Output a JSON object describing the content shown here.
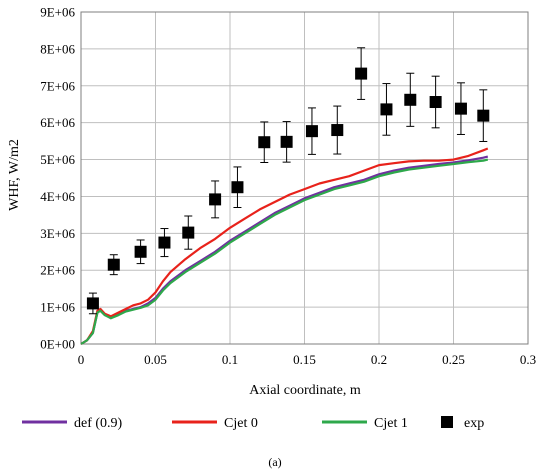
{
  "chart_data": {
    "type": "line",
    "title": "",
    "caption": "(a)",
    "xlabel": "Axial coordinate, m",
    "ylabel": "WHF, W/m2",
    "xlim": [
      0,
      0.3
    ],
    "ylim": [
      0,
      9000000
    ],
    "x_ticks": [
      0,
      0.05,
      0.1,
      0.15,
      0.2,
      0.25,
      0.3
    ],
    "x_tick_labels": [
      "0",
      "0.05",
      "0.1",
      "0.15",
      "0.2",
      "0.25",
      "0.3"
    ],
    "y_ticks": [
      0,
      1000000,
      2000000,
      3000000,
      4000000,
      5000000,
      6000000,
      7000000,
      8000000,
      9000000
    ],
    "y_tick_labels": [
      "0E+00",
      "1E+06",
      "2E+06",
      "3E+06",
      "4E+06",
      "5E+06",
      "6E+06",
      "7E+06",
      "8E+06",
      "9E+06"
    ],
    "grid": true,
    "legend_position": "bottom",
    "series": [
      {
        "name": "def (0.9)",
        "kind": "line",
        "color": "#7030a0",
        "x": [
          0.0,
          0.004,
          0.008,
          0.011,
          0.013,
          0.016,
          0.02,
          0.025,
          0.03,
          0.035,
          0.04,
          0.045,
          0.05,
          0.055,
          0.06,
          0.07,
          0.08,
          0.09,
          0.1,
          0.11,
          0.12,
          0.13,
          0.14,
          0.15,
          0.16,
          0.17,
          0.18,
          0.19,
          0.2,
          0.21,
          0.22,
          0.23,
          0.24,
          0.25,
          0.26,
          0.27,
          0.273
        ],
        "y": [
          0,
          100000,
          300000,
          850000,
          950000,
          800000,
          700000,
          800000,
          900000,
          950000,
          1000000,
          1100000,
          1250000,
          1500000,
          1700000,
          2000000,
          2250000,
          2500000,
          2800000,
          3050000,
          3300000,
          3550000,
          3750000,
          3950000,
          4100000,
          4250000,
          4350000,
          4450000,
          4600000,
          4700000,
          4780000,
          4830000,
          4880000,
          4920000,
          4980000,
          5050000,
          5080000
        ]
      },
      {
        "name": "Cjet 0",
        "kind": "line",
        "color": "#e8221b",
        "x": [
          0.0,
          0.004,
          0.008,
          0.011,
          0.013,
          0.016,
          0.02,
          0.025,
          0.03,
          0.035,
          0.04,
          0.045,
          0.05,
          0.055,
          0.06,
          0.07,
          0.08,
          0.09,
          0.1,
          0.11,
          0.12,
          0.13,
          0.14,
          0.15,
          0.16,
          0.17,
          0.18,
          0.19,
          0.2,
          0.21,
          0.22,
          0.23,
          0.24,
          0.25,
          0.26,
          0.27,
          0.273
        ],
        "y": [
          0,
          100000,
          350000,
          900000,
          950000,
          820000,
          750000,
          850000,
          950000,
          1050000,
          1100000,
          1200000,
          1400000,
          1700000,
          1950000,
          2300000,
          2600000,
          2850000,
          3150000,
          3400000,
          3650000,
          3850000,
          4050000,
          4200000,
          4350000,
          4450000,
          4550000,
          4700000,
          4850000,
          4900000,
          4950000,
          4970000,
          4970000,
          5000000,
          5100000,
          5250000,
          5300000
        ]
      },
      {
        "name": "Cjet 1",
        "kind": "line",
        "color": "#2ea84b",
        "x": [
          0.0,
          0.004,
          0.008,
          0.011,
          0.013,
          0.016,
          0.02,
          0.025,
          0.03,
          0.035,
          0.04,
          0.045,
          0.05,
          0.055,
          0.06,
          0.07,
          0.08,
          0.09,
          0.1,
          0.11,
          0.12,
          0.13,
          0.14,
          0.15,
          0.16,
          0.17,
          0.18,
          0.19,
          0.2,
          0.21,
          0.22,
          0.23,
          0.24,
          0.25,
          0.26,
          0.27,
          0.273
        ],
        "y": [
          0,
          100000,
          300000,
          850000,
          900000,
          780000,
          700000,
          780000,
          880000,
          930000,
          980000,
          1050000,
          1200000,
          1450000,
          1650000,
          1950000,
          2200000,
          2450000,
          2750000,
          3000000,
          3250000,
          3500000,
          3700000,
          3900000,
          4050000,
          4200000,
          4300000,
          4400000,
          4550000,
          4650000,
          4730000,
          4780000,
          4830000,
          4880000,
          4930000,
          4970000,
          5000000
        ]
      },
      {
        "name": "exp",
        "kind": "markers",
        "color": "#000000",
        "x": [
          0.008,
          0.022,
          0.04,
          0.056,
          0.072,
          0.09,
          0.105,
          0.123,
          0.138,
          0.155,
          0.172,
          0.188,
          0.205,
          0.221,
          0.238,
          0.255,
          0.27
        ],
        "y": [
          1100000,
          2150000,
          2500000,
          2750000,
          3020000,
          3920000,
          4250000,
          5470000,
          5480000,
          5770000,
          5800000,
          7330000,
          6360000,
          6620000,
          6560000,
          6380000,
          6190000
        ],
        "y_err": [
          280000,
          270000,
          320000,
          380000,
          450000,
          500000,
          550000,
          550000,
          550000,
          630000,
          650000,
          700000,
          700000,
          720000,
          700000,
          700000,
          700000
        ]
      }
    ]
  }
}
